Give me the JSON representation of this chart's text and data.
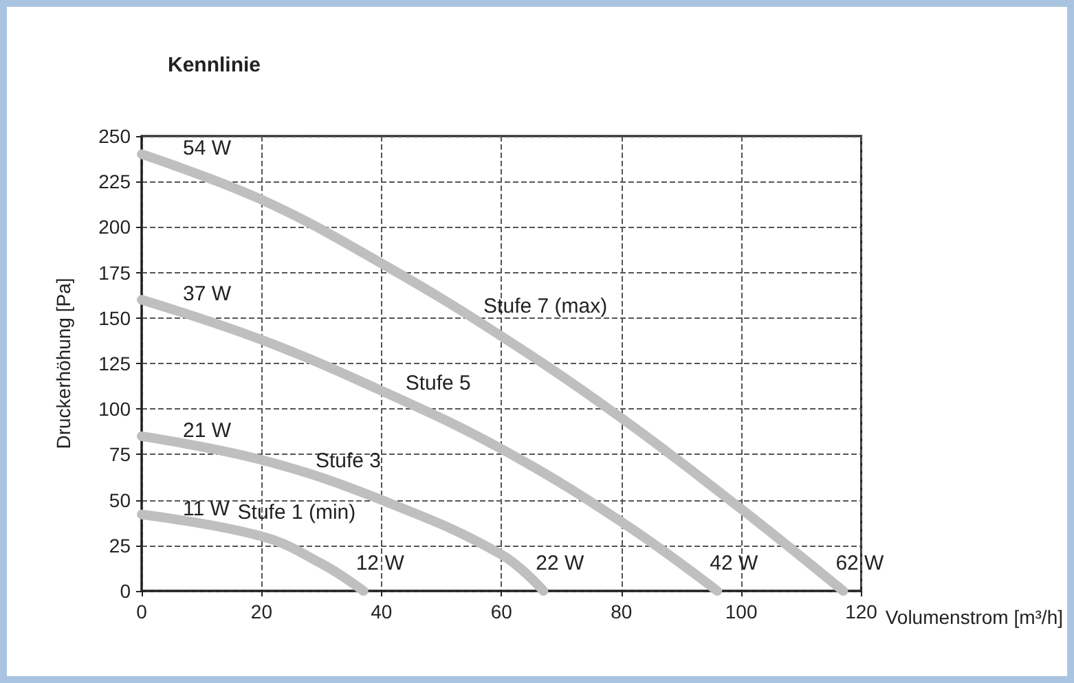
{
  "chart_data": {
    "type": "line",
    "title": "Kennlinie",
    "xlabel": "Volumenstrom [m³/h]",
    "ylabel": "Druckerhöhung [Pa]",
    "xlim": [
      0,
      120
    ],
    "xticks": [
      0,
      20,
      40,
      60,
      80,
      100,
      120
    ],
    "ylim": [
      0,
      250
    ],
    "yticks": [
      0,
      25,
      50,
      75,
      100,
      125,
      150,
      175,
      200,
      225,
      250
    ],
    "grid": true,
    "line_style": "solid",
    "series": [
      {
        "color": "#bfbfbf",
        "x": [
          0,
          20,
          40,
          60,
          80,
          100,
          117
        ],
        "values": [
          240,
          215,
          180,
          140,
          95,
          45,
          0
        ]
      },
      {
        "color": "#bfbfbf",
        "x": [
          0,
          20,
          40,
          60,
          80,
          96
        ],
        "values": [
          160,
          138,
          110,
          78,
          38,
          0
        ]
      },
      {
        "color": "#bfbfbf",
        "x": [
          0,
          20,
          40,
          60,
          67
        ],
        "values": [
          85,
          72,
          50,
          20,
          0
        ]
      },
      {
        "color": "#bfbfbf",
        "x": [
          0,
          20,
          30,
          37
        ],
        "values": [
          42,
          30,
          15,
          0
        ]
      }
    ],
    "annotations": [
      {
        "text": "54 W",
        "x": 0,
        "y": 240
      },
      {
        "text": "37 W",
        "x": 0,
        "y": 160
      },
      {
        "text": "21 W",
        "x": 0,
        "y": 85
      },
      {
        "text": "11 W",
        "x": 0,
        "y": 42
      },
      {
        "text": "Stufe 1 (min)",
        "x": 16,
        "y": 33
      },
      {
        "text": "Stufe 3",
        "x": 29,
        "y": 61
      },
      {
        "text": "Stufe 5",
        "x": 44,
        "y": 104
      },
      {
        "text": "Stufe 7 (max)",
        "x": 57,
        "y": 146
      },
      {
        "text": "12 W",
        "x": 37,
        "y": 0
      },
      {
        "text": "22 W",
        "x": 67,
        "y": 0
      },
      {
        "text": "42 W",
        "x": 96,
        "y": 0
      },
      {
        "text": "62 W",
        "x": 117,
        "y": 0
      }
    ]
  }
}
